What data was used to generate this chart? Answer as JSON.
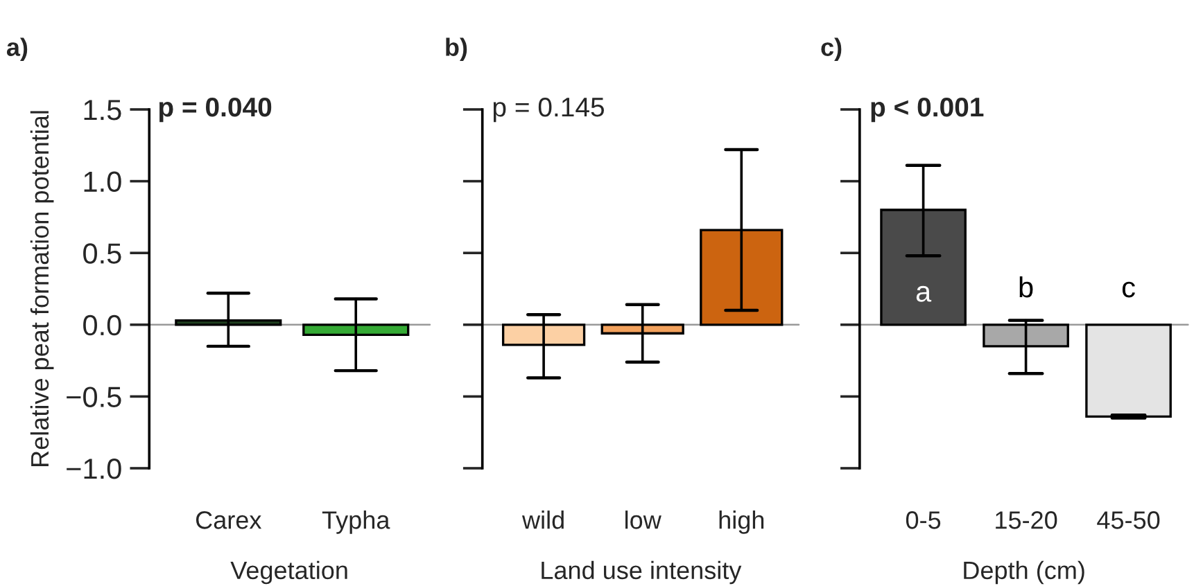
{
  "chart_data": [
    {
      "type": "bar",
      "title": "a)",
      "xlabel": "Vegetation",
      "ylabel": "Relative peat formation potential",
      "categories": [
        "Carex",
        "Typha"
      ],
      "values": [
        0.03,
        -0.07
      ],
      "colors": [
        "#1f3f1f",
        "#35aa35"
      ],
      "errors": [
        [
          -0.15,
          0.22
        ],
        [
          -0.32,
          0.18
        ]
      ],
      "ylim": [
        -1.0,
        1.5
      ],
      "yticks": [
        {
          "value": -1.0,
          "label": "−1.0"
        },
        {
          "value": -0.5,
          "label": "−0.5"
        },
        {
          "value": 0.0,
          "label": "0.0"
        },
        {
          "value": 0.5,
          "label": "0.5"
        },
        {
          "value": 1.0,
          "label": "1.0"
        },
        {
          "value": 1.5,
          "label": "1.5"
        }
      ],
      "annotations": [
        "p = 0.040"
      ],
      "ref_lines": [
        {
          "axis": "y",
          "value": 0,
          "color": "#999999"
        }
      ],
      "grid": false,
      "legend": false
    },
    {
      "type": "bar",
      "title": "b)",
      "xlabel": "Land use intensity",
      "categories": [
        "wild",
        "low",
        "high"
      ],
      "values": [
        -0.14,
        -0.06,
        0.66
      ],
      "colors": [
        "#fcd0a4",
        "#f2a15c",
        "#cc6410"
      ],
      "errors": [
        [
          -0.37,
          0.07
        ],
        [
          -0.26,
          0.14
        ],
        [
          0.1,
          1.22
        ]
      ],
      "ylim": [
        -1.0,
        1.5
      ],
      "yticks": [
        {
          "value": -1.0,
          "label": null
        },
        {
          "value": -0.5,
          "label": null
        },
        {
          "value": 0.0,
          "label": null
        },
        {
          "value": 0.5,
          "label": null
        },
        {
          "value": 1.0,
          "label": null
        },
        {
          "value": 1.5,
          "label": null
        }
      ],
      "tick_labels": "x",
      "annotations": [
        "p = 0.145"
      ],
      "ref_lines": [
        {
          "axis": "y",
          "value": 0,
          "color": "#999999"
        }
      ],
      "grid": false,
      "legend": false
    },
    {
      "type": "bar",
      "title": "c)",
      "xlabel": "Depth (cm)",
      "categories": [
        "0-5",
        "15-20",
        "45-50"
      ],
      "values": [
        0.8,
        -0.15,
        -0.64
      ],
      "colors": [
        "#4a4a4a",
        "#a8a8a8",
        "#e4e4e4"
      ],
      "errors": [
        [
          0.48,
          1.11
        ],
        [
          -0.34,
          0.03
        ],
        [
          -0.65,
          -0.63
        ]
      ],
      "value_labels": [
        "a",
        "b",
        "c"
      ],
      "ylim": [
        -1.0,
        1.5
      ],
      "yticks": [
        {
          "value": -1.0,
          "label": null
        },
        {
          "value": -0.5,
          "label": null
        },
        {
          "value": 0.0,
          "label": null
        },
        {
          "value": 0.5,
          "label": null
        },
        {
          "value": 1.0,
          "label": null
        },
        {
          "value": 1.5,
          "label": null
        }
      ],
      "tick_labels": "x",
      "annotations": [
        "p < 0.001"
      ],
      "ref_lines": [
        {
          "axis": "y",
          "value": 0,
          "color": "#999999"
        }
      ],
      "grid": false,
      "legend": false
    }
  ]
}
